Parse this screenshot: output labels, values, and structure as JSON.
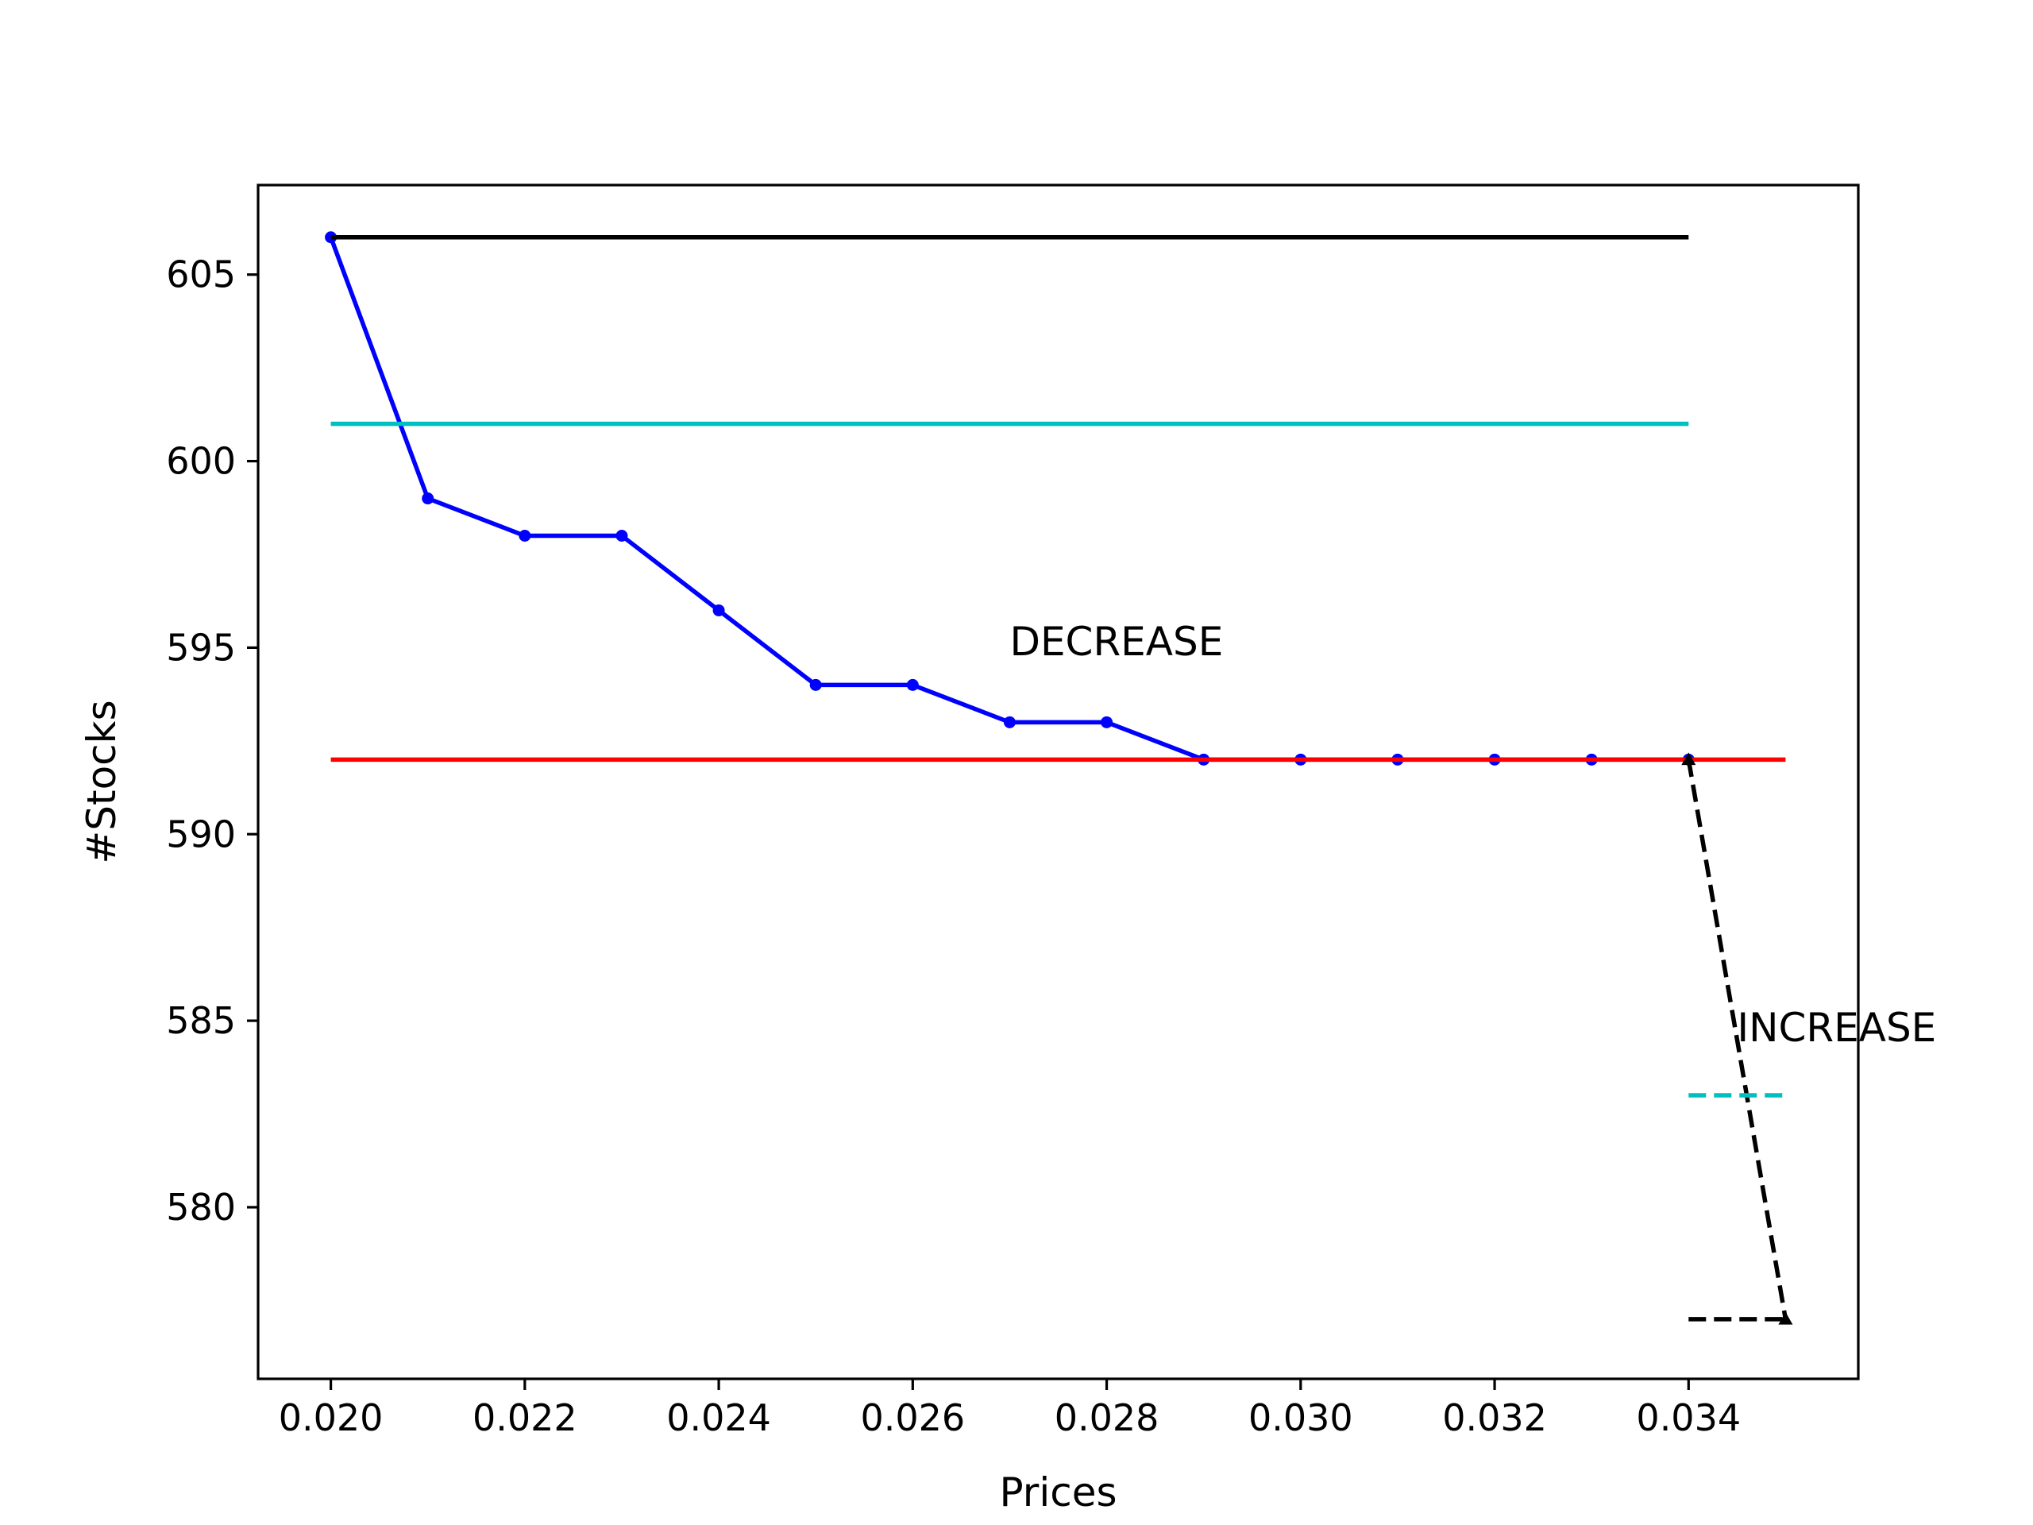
{
  "chart_data": {
    "type": "line",
    "title": "",
    "xlabel": "Prices",
    "ylabel": "#Stocks",
    "xlim": [
      0.01925,
      0.03575
    ],
    "ylim": [
      575.4,
      607.4
    ],
    "x_ticks": [
      0.02,
      0.022,
      0.024,
      0.026,
      0.028,
      0.03,
      0.032,
      0.034
    ],
    "x_tick_labels": [
      "0.020",
      "0.022",
      "0.024",
      "0.026",
      "0.028",
      "0.030",
      "0.032",
      "0.034"
    ],
    "y_ticks": [
      580,
      585,
      590,
      595,
      600,
      605
    ],
    "y_tick_labels": [
      "580",
      "585",
      "590",
      "595",
      "600",
      "605"
    ],
    "grid": false,
    "legend": false,
    "series": [
      {
        "color": "#0000ff",
        "style": "solid",
        "marker": "dot",
        "x": [
          0.02,
          0.021,
          0.022,
          0.023,
          0.024,
          0.025,
          0.026,
          0.027,
          0.028,
          0.029,
          0.03,
          0.031,
          0.032,
          0.033,
          0.034
        ],
        "y": [
          606,
          599,
          598,
          598,
          596,
          594,
          594,
          593,
          593,
          592,
          592,
          592,
          592,
          592,
          592
        ]
      },
      {
        "color": "#000000",
        "style": "solid",
        "marker": "none",
        "x": [
          0.02,
          0.034
        ],
        "y": [
          606,
          606
        ]
      },
      {
        "color": "#00bfbf",
        "style": "solid",
        "marker": "none",
        "x": [
          0.02,
          0.034
        ],
        "y": [
          601,
          601
        ]
      },
      {
        "color": "#ff0000",
        "style": "solid",
        "marker": "none",
        "x": [
          0.02,
          0.035
        ],
        "y": [
          592,
          592
        ]
      },
      {
        "color": "#000000",
        "style": "dashed",
        "marker": "triangle",
        "x": [
          0.034,
          0.035
        ],
        "y": [
          592,
          577
        ]
      },
      {
        "color": "#000000",
        "style": "dashed",
        "marker": "none",
        "x": [
          0.034,
          0.035
        ],
        "y": [
          577,
          577
        ]
      },
      {
        "color": "#00bfbf",
        "style": "dashed",
        "marker": "none",
        "x": [
          0.034,
          0.035
        ],
        "y": [
          583,
          583
        ]
      }
    ],
    "annotations": [
      {
        "text": "DECREASE",
        "x": 0.027,
        "y": 594.8
      },
      {
        "text": "INCREASE",
        "x": 0.0345,
        "y": 584.45
      }
    ]
  }
}
